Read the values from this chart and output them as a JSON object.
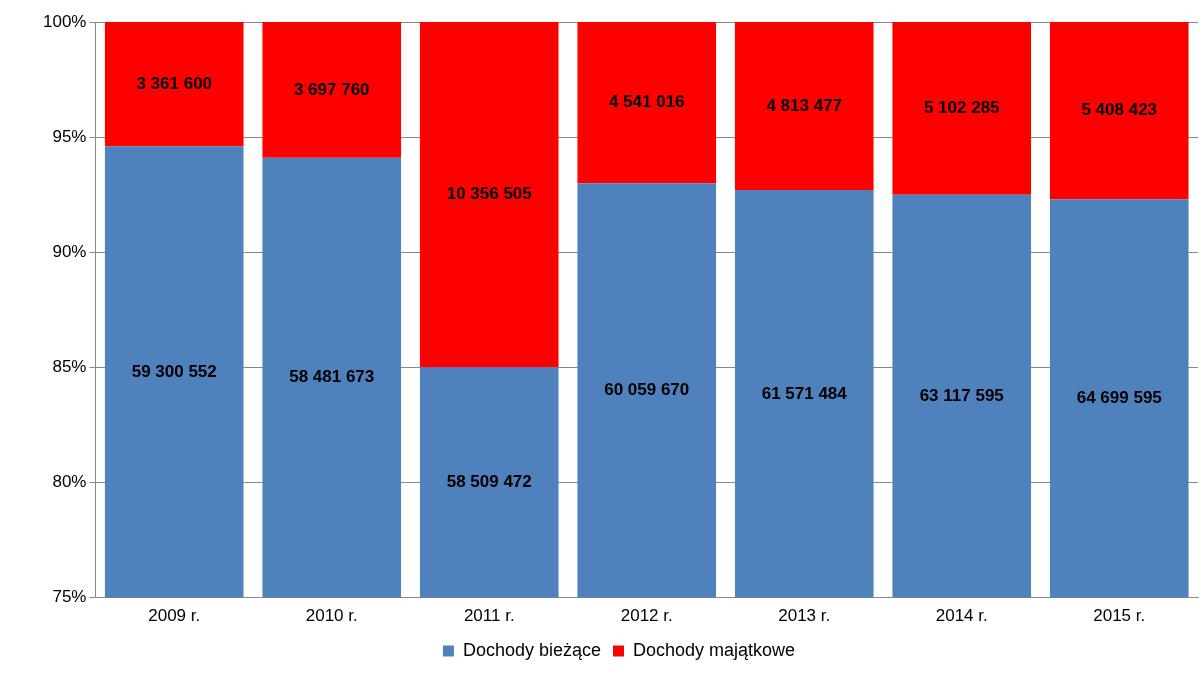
{
  "chart_data": {
    "type": "bar",
    "stacked": true,
    "categories": [
      "2009 r.",
      "2010 r.",
      "2011 r.",
      "2012 r.",
      "2013 r.",
      "2014 r.",
      "2015 r."
    ],
    "series": [
      {
        "name": "Dochody bieżące",
        "color": "#4f81bd",
        "values": [
          94.6,
          94.1,
          85.0,
          93.0,
          92.7,
          92.5,
          92.3
        ]
      },
      {
        "name": "Dochody majątkowe",
        "color": "#ff0000",
        "base": [
          94.6,
          94.1,
          85.0,
          93.0,
          92.7,
          92.5,
          92.3
        ],
        "values": [
          5.4,
          5.9,
          15.0,
          7.0,
          7.3,
          7.5,
          7.7
        ]
      }
    ],
    "annotations": [
      "59 300 552",
      "58 481 673",
      "58 509 472",
      "60 059 670",
      "61 571 484",
      "63 117 595",
      "64 699 595",
      "3 361 600",
      "3 697 760",
      "10 356 505",
      "4 541 016",
      "4 813 477",
      "5 102 285",
      "5 408 423"
    ],
    "ylim": [
      75,
      100
    ],
    "yticks": [
      {
        "value": 75,
        "label": "75%"
      },
      {
        "value": 80,
        "label": "80%"
      },
      {
        "value": 85,
        "label": "85%"
      },
      {
        "value": 90,
        "label": "90%"
      },
      {
        "value": 95,
        "label": "95%"
      },
      {
        "value": 100,
        "label": "100%"
      }
    ],
    "grid": "y",
    "legend": "bottom"
  }
}
